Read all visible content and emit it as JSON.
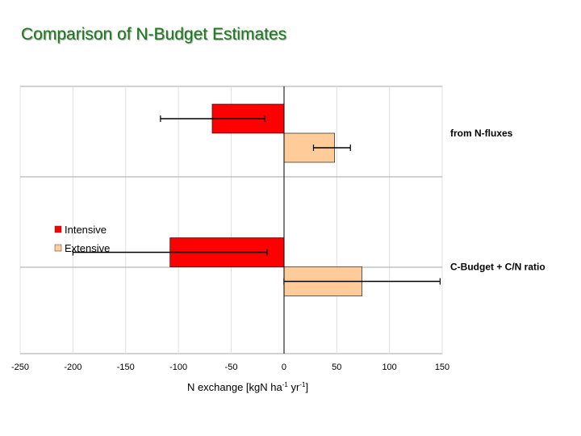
{
  "slide": {
    "title": "Comparison of N-Budget Estimates"
  },
  "chart_data": {
    "type": "bar",
    "orientation": "horizontal",
    "categories": [
      "from N-fluxes",
      "C-Budget + C/N ratio"
    ],
    "series": [
      {
        "name": "Intensive",
        "color": "#ff0000",
        "values": [
          -68,
          -108
        ],
        "error_low": [
          -117,
          -200
        ],
        "error_high": [
          -18,
          -16
        ]
      },
      {
        "name": "Extensive",
        "color": "#ffcc99",
        "values": [
          48,
          74
        ],
        "error_low": [
          28,
          0
        ],
        "error_high": [
          63,
          148
        ]
      }
    ],
    "xlim": [
      -250,
      150
    ],
    "xticks": [
      "-250",
      "-200",
      "-150",
      "-100",
      "-50",
      "0",
      "50",
      "100",
      "150"
    ],
    "xlabel": {
      "prefix": "N exchange [kgN ha",
      "sup1": "-1",
      "mid": " yr",
      "sup2": "-1",
      "suffix": "]"
    },
    "grid": true,
    "legend_position": "left-middle"
  }
}
